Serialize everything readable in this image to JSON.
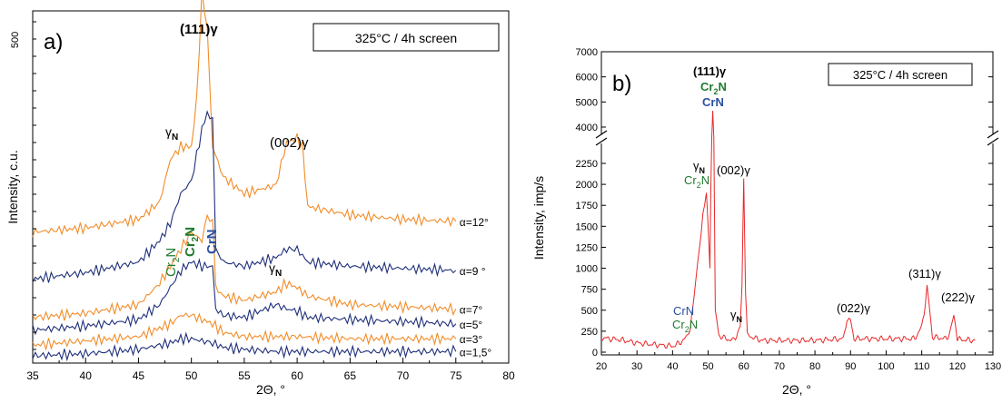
{
  "chart_data": [
    {
      "type": "line",
      "panel_label": "a)",
      "legend_box": "325°C / 4h screen",
      "xlabel": "2Θ, °",
      "ylabel": "Intensity, c.u.",
      "xlim": [
        35,
        80
      ],
      "x_ticks": [
        "35",
        "40",
        "45",
        "50",
        "55",
        "60",
        "65",
        "70",
        "75",
        "80"
      ],
      "scale_bar_label": "500",
      "colors": {
        "orange": "#f28c28",
        "navy": "#1f2f7a",
        "green": "#1f7a2e",
        "blue": "#2a4fa0"
      },
      "series": [
        {
          "name": "α=12°",
          "color": "#f28c28",
          "baseline": 58,
          "x": [
            35,
            40,
            45,
            47,
            48,
            49,
            50,
            50.5,
            51,
            51.5,
            52,
            53,
            55,
            58,
            59,
            60,
            60.5,
            61,
            65,
            70,
            75
          ],
          "values": [
            0,
            2,
            6,
            14,
            34,
            40,
            40,
            62,
            112,
            96,
            40,
            26,
            18,
            22,
            42,
            44,
            40,
            12,
            8,
            6,
            5
          ]
        },
        {
          "name": "α=9 °",
          "color": "#1f2f7a",
          "baseline": 36,
          "x": [
            35,
            40,
            45,
            47,
            48,
            49,
            50,
            51,
            51.5,
            52,
            52.3,
            53,
            55,
            58,
            59,
            60,
            61,
            65,
            70,
            75
          ],
          "values": [
            0,
            3,
            8,
            18,
            26,
            40,
            46,
            70,
            78,
            74,
            14,
            8,
            6,
            10,
            14,
            14,
            8,
            6,
            5,
            4
          ]
        },
        {
          "name": "α=7°",
          "color": "#f28c28",
          "baseline": 18,
          "x": [
            35,
            40,
            45,
            47,
            48,
            49,
            50,
            51,
            51.5,
            52,
            52.3,
            53,
            55,
            58,
            59,
            60,
            61,
            65,
            70,
            75
          ],
          "values": [
            0,
            2,
            6,
            16,
            24,
            32,
            40,
            36,
            48,
            44,
            14,
            10,
            8,
            12,
            16,
            14,
            10,
            6,
            5,
            4
          ]
        },
        {
          "name": "α=5°",
          "color": "#1f2f7a",
          "baseline": 12,
          "x": [
            35,
            40,
            45,
            47,
            48,
            49,
            50,
            51,
            52,
            52.3,
            53,
            55,
            58,
            59,
            60,
            61,
            65,
            70,
            75
          ],
          "values": [
            0,
            2,
            5,
            12,
            20,
            28,
            32,
            30,
            30,
            10,
            7,
            6,
            12,
            10,
            9,
            6,
            5,
            4,
            3
          ]
        },
        {
          "name": "α=3°",
          "color": "#f28c28",
          "baseline": 5,
          "x": [
            35,
            40,
            45,
            47,
            48,
            49,
            50,
            51,
            52,
            53,
            55,
            58,
            60,
            65,
            70,
            75
          ],
          "values": [
            0,
            2,
            4,
            8,
            10,
            14,
            14,
            12,
            10,
            6,
            4,
            4,
            4,
            3,
            3,
            3
          ]
        },
        {
          "name": "α=1,5°",
          "color": "#1f2f7a",
          "baseline": 0,
          "x": [
            35,
            40,
            45,
            47,
            48,
            49,
            50,
            51,
            52,
            53,
            55,
            58,
            60,
            65,
            70,
            75
          ],
          "values": [
            0,
            1,
            3,
            5,
            6,
            8,
            8,
            7,
            6,
            4,
            3,
            2,
            2,
            2,
            2,
            2
          ]
        }
      ],
      "annotations": {
        "p111": "(111)γ",
        "gammaN": "γ",
        "gammaN_sub": "N",
        "p002": "(002)γ",
        "cr2n": "Cr",
        "cr2n_sub": "2",
        "cr2n_n": "N",
        "crn": "CrN",
        "gammaN2": "γ",
        "gammaN2_sub": "N"
      }
    },
    {
      "type": "line",
      "panel_label": "b)",
      "legend_box": "325°C / 4h screen",
      "xlabel": "2Θ, °",
      "ylabel": "Intensity, imp/s",
      "xlim": [
        20,
        130
      ],
      "x_ticks": [
        "20",
        "30",
        "40",
        "50",
        "60",
        "70",
        "80",
        "90",
        "100",
        "110",
        "120",
        "130"
      ],
      "y_ticks_upper": [
        "4000",
        "5000",
        "6000",
        "7000"
      ],
      "y_ticks_lower": [
        "0",
        "250",
        "500",
        "750",
        "1000",
        "1250",
        "1500",
        "1750",
        "2000",
        "2250"
      ],
      "axis_break": [
        2400,
        3800
      ],
      "color": "#e8282a",
      "x": [
        20,
        25,
        30,
        35,
        40,
        42,
        44,
        45,
        46,
        47,
        48,
        48.5,
        49,
        49.5,
        50,
        50.5,
        51,
        51.3,
        51.6,
        52,
        53,
        55,
        57,
        58,
        59,
        59.5,
        60,
        60.5,
        61,
        65,
        70,
        80,
        88,
        89,
        89.5,
        90,
        91,
        100,
        108,
        110,
        111,
        111.5,
        112,
        113,
        117,
        118,
        119,
        119.5,
        120,
        121,
        125
      ],
      "values": [
        170,
        150,
        110,
        90,
        70,
        110,
        180,
        300,
        650,
        1050,
        1400,
        1650,
        1750,
        1900,
        1500,
        1000,
        2900,
        4650,
        2900,
        500,
        200,
        160,
        140,
        200,
        300,
        800,
        2070,
        700,
        200,
        140,
        140,
        140,
        160,
        400,
        430,
        380,
        160,
        160,
        160,
        300,
        560,
        800,
        600,
        180,
        160,
        250,
        430,
        300,
        160,
        150,
        140
      ],
      "annotations": {
        "p111": "(111)γ",
        "cr2n_a": "Cr",
        "cr2n_a_sub": "2",
        "cr2n_a_n": "N",
        "crn_a": "CrN",
        "gammaN_a": "γ",
        "gammaN_a_sub": "N",
        "cr2n_b": "Cr",
        "cr2n_b_sub": "2",
        "cr2n_b_n": "N",
        "p002": "(002)γ",
        "crn_c": "CrN",
        "cr2n_c": "Cr",
        "cr2n_c_sub": "2",
        "cr2n_c_n": "N",
        "gammaN_c": "γ",
        "gammaN_c_sub": "N",
        "p022": "(022)γ",
        "p311": "(311)γ",
        "p222": "(222)γ"
      }
    }
  ]
}
